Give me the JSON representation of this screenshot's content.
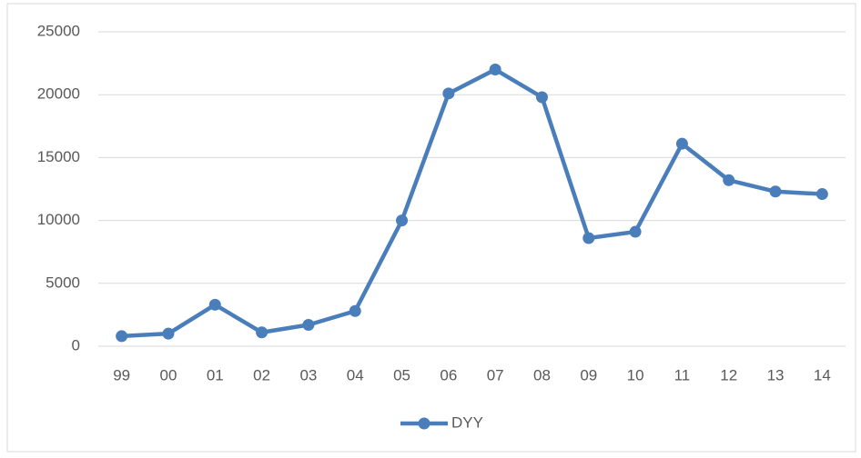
{
  "chart_data": {
    "type": "line",
    "categories": [
      "99",
      "00",
      "01",
      "02",
      "03",
      "04",
      "05",
      "06",
      "07",
      "08",
      "09",
      "10",
      "11",
      "12",
      "13",
      "14"
    ],
    "series": [
      {
        "name": "DYY",
        "color": "#4a7ebb",
        "values": [
          800,
          1000,
          3300,
          1100,
          1700,
          2800,
          10000,
          20100,
          22000,
          19800,
          8600,
          9100,
          16100,
          13200,
          12300,
          12100
        ]
      }
    ],
    "ylim": [
      0,
      25000
    ],
    "yticks": [
      0,
      5000,
      10000,
      15000,
      20000,
      25000
    ],
    "grid": true,
    "legend": "bottom"
  }
}
